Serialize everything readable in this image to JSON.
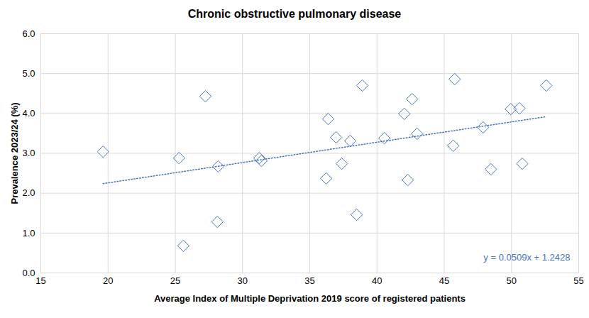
{
  "chart_data": {
    "type": "scatter",
    "title": "Chronic obstructive pulmonary disease",
    "x_label": "Average Index of Multiple Deprivation 2019 score of registered patients",
    "y_label": "Prevalence 2023/24 (%)",
    "xlim": [
      15,
      55
    ],
    "xticks": [
      15,
      20,
      25,
      30,
      35,
      40,
      45,
      50,
      55
    ],
    "ylim": [
      0,
      6
    ],
    "yticks": [
      0,
      1,
      2,
      3,
      4,
      5,
      6
    ],
    "grid": true,
    "series": [
      {
        "type": "scatter",
        "marker": "diamond",
        "color": "#4472c4",
        "x": [
          19.63,
          25.28,
          25.6,
          27.24,
          28.19,
          28.13,
          31.25,
          31.41,
          36.22,
          36.37,
          36.96,
          37.38,
          38.01,
          38.49,
          38.91,
          40.55,
          42.03,
          42.29,
          42.61,
          42.98,
          45.67,
          45.78,
          47.89,
          48.47,
          49.95,
          50.59,
          50.8,
          52.59
        ],
        "values": [
          3.04,
          2.88,
          0.68,
          4.43,
          2.67,
          1.28,
          2.88,
          2.81,
          2.37,
          3.86,
          3.4,
          2.74,
          3.31,
          1.46,
          4.7,
          3.38,
          3.99,
          2.33,
          4.36,
          3.49,
          3.19,
          4.86,
          3.65,
          2.6,
          4.11,
          4.13,
          2.74,
          4.7
        ]
      },
      {
        "type": "line",
        "line_style": "dotted",
        "color": "#4472c4",
        "x": [
          19.63,
          52.59
        ],
        "values": [
          2.24,
          3.92
        ]
      }
    ],
    "annotations": [
      {
        "text": "y = 0.0509x + 1.2428",
        "color": "#4472c4"
      }
    ]
  }
}
